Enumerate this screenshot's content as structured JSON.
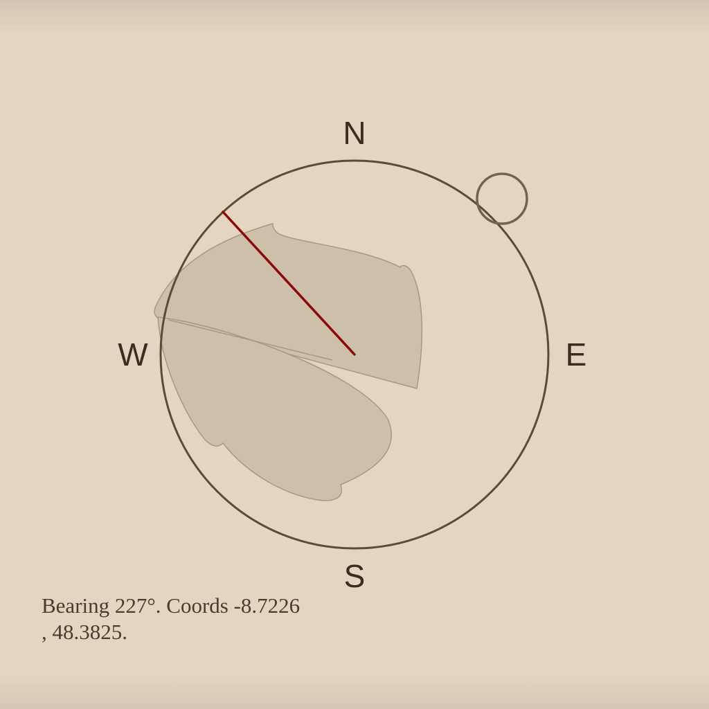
{
  "compass": {
    "labels": {
      "north": "N",
      "east": "E",
      "south": "S",
      "west": "W"
    },
    "bearing_deg": 227,
    "needle_color": "#8a0a0a",
    "ring_color": "#5b4a38",
    "patch_color": "#cdbfa9"
  },
  "status": {
    "text": "Bearing 227°. Coords -8.7226\n, 48.3825."
  }
}
